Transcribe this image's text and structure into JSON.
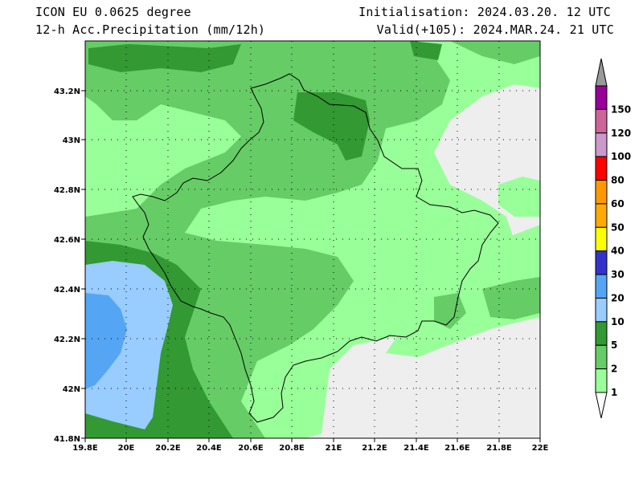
{
  "header": {
    "model": "ICON EU 0.0625 degree",
    "field": "12-h Acc.Precipitation (mm/12h)",
    "init": "Initialisation: 2024.03.20. 12 UTC",
    "valid": "Valid(+105): 2024.MAR.24. 21 UTC"
  },
  "map": {
    "lon_ticks": [
      "19.8E",
      "20E",
      "20.2E",
      "20.4E",
      "20.6E",
      "20.8E",
      "21E",
      "21.2E",
      "21.4E",
      "21.6E",
      "21.8E",
      "22E"
    ],
    "lat_ticks": [
      "41.8N",
      "42N",
      "42.2N",
      "42.4N",
      "42.6N",
      "42.8N",
      "43N",
      "43.2N"
    ],
    "background_color": "#eeeeee",
    "border_color": "#000000"
  },
  "legend": {
    "levels": [
      "1",
      "2",
      "5",
      "10",
      "20",
      "30",
      "40",
      "50",
      "60",
      "80",
      "100",
      "120",
      "150"
    ],
    "colors": [
      "#99ff99",
      "#66cc66",
      "#339933",
      "#99ccff",
      "#55a5f5",
      "#3333cc",
      "#ffff00",
      "#ffaa00",
      "#ff9900",
      "#ff0000",
      "#cc99cc",
      "#cc6699",
      "#990099"
    ],
    "arrow_top_color": "#999999",
    "arrow_bottom_color": "#ffffff"
  }
}
